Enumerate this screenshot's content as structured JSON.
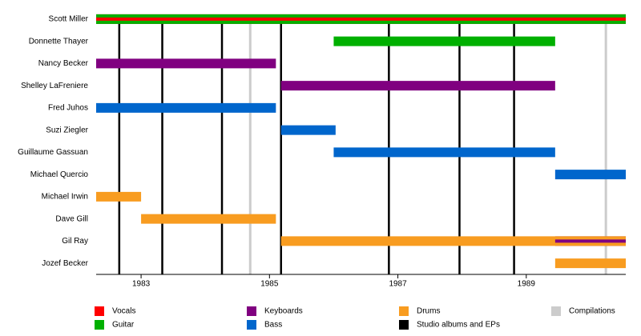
{
  "chart_data": {
    "type": "timeline",
    "categories": [
      "Scott Miller",
      "Donnette Thayer",
      "Nancy Becker",
      "Shelley LaFreniere",
      "Fred Juhos",
      "Suzi Ziegler",
      "Guillaume Gassuan",
      "Michael Quercio",
      "Michael Irwin",
      "Dave Gill",
      "Gil Ray",
      "Jozef Becker"
    ],
    "series": [
      {
        "name": "Vocals",
        "color": "#ff0000",
        "values": [
          [
            1982.3,
            1990.55
          ],
          null,
          null,
          null,
          null,
          null,
          null,
          null,
          null,
          null,
          null,
          null
        ]
      },
      {
        "name": "Guitar",
        "color": "#00b000",
        "values": [
          [
            1982.3,
            1990.55
          ],
          [
            1986.0,
            1989.45
          ],
          null,
          null,
          null,
          null,
          null,
          null,
          null,
          null,
          null,
          null
        ]
      },
      {
        "name": "Keyboards",
        "color": "#800080",
        "values": [
          null,
          null,
          [
            1982.3,
            1985.1
          ],
          [
            1985.18,
            1989.45
          ],
          null,
          null,
          null,
          null,
          null,
          null,
          [
            1989.45,
            1990.55
          ],
          null
        ]
      },
      {
        "name": "Bass",
        "color": "#0066cc",
        "values": [
          null,
          null,
          null,
          null,
          [
            1982.3,
            1985.1
          ],
          [
            1985.18,
            1986.03
          ],
          [
            1986.0,
            1989.45
          ],
          [
            1989.45,
            1990.55
          ],
          null,
          null,
          null,
          null
        ]
      },
      {
        "name": "Drums",
        "color": "#f89c20",
        "values": [
          null,
          null,
          null,
          null,
          null,
          null,
          null,
          null,
          [
            1982.3,
            1983.0
          ],
          [
            1983.0,
            1985.1
          ],
          [
            1985.18,
            1990.55
          ],
          [
            1989.45,
            1990.55
          ]
        ]
      }
    ],
    "events": [
      {
        "name": "Studio albums and EPs",
        "color": "#000000",
        "x": [
          1982.66,
          1983.33,
          1984.26,
          1985.18,
          1986.86,
          1987.96,
          1988.81
        ]
      },
      {
        "name": "Compilations",
        "color": "#cccccc",
        "x": [
          1984.7,
          1990.24
        ]
      }
    ],
    "xlim": [
      1982.3,
      1990.55
    ],
    "xticks": [
      1983,
      1985,
      1987,
      1989
    ]
  }
}
